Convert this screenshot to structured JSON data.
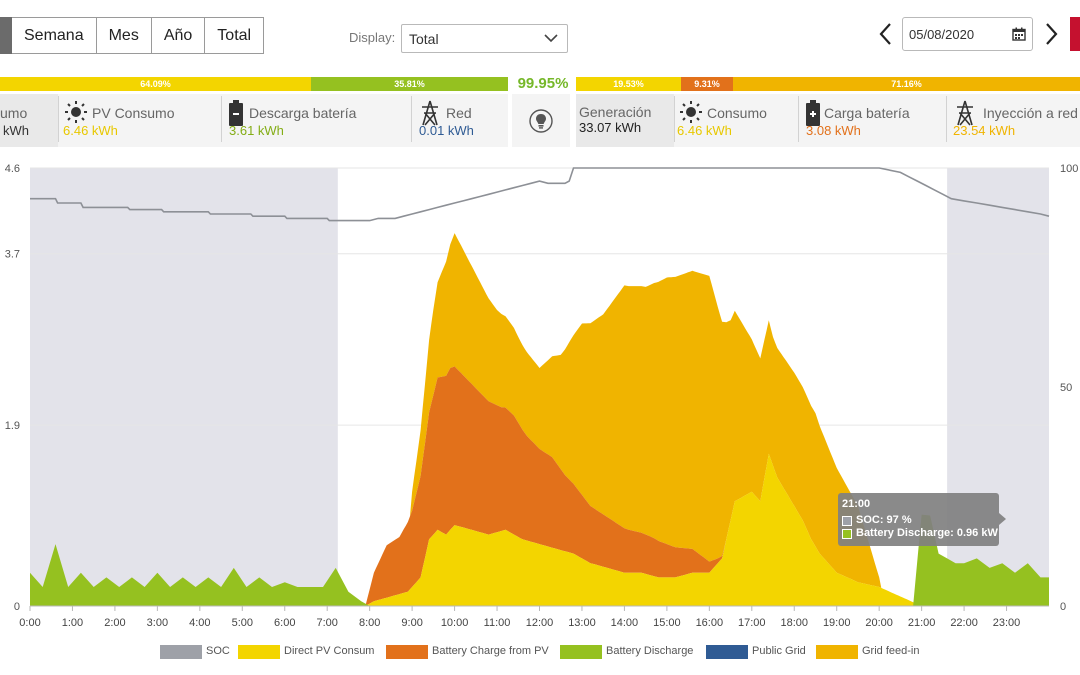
{
  "toolbar": {
    "tabs": [
      "Semana",
      "Mes",
      "Año",
      "Total"
    ],
    "display_label": "Display:",
    "display_value": "Total",
    "date_value": "05/08/2020"
  },
  "consumption_bars": {
    "pv_pct": "64.09%",
    "battery_pct": "35.81%"
  },
  "self_sufficiency": "99.95%",
  "generation_bars": {
    "self_pct": "19.53%",
    "battery_pct": "9.31%",
    "grid_pct": "71.16%"
  },
  "consumption_cards": {
    "total": {
      "title": "umo",
      "value": "kWh"
    },
    "pv": {
      "title": "PV Consumo",
      "value": "6.46 kWh"
    },
    "battery": {
      "title": "Descarga batería",
      "value": "3.61 kWh"
    },
    "grid": {
      "title": "Red",
      "value": "0.01 kWh"
    }
  },
  "generation_cards": {
    "total": {
      "title": "Generación",
      "value": "33.07 kWh"
    },
    "self": {
      "title": "Consumo",
      "value": "6.46 kWh"
    },
    "battery": {
      "title": "Carga batería",
      "value": "3.08 kWh"
    },
    "grid": {
      "title": "Inyección a red",
      "value": "23.54 kWh"
    }
  },
  "colors": {
    "soc": "#9ea1a8",
    "direct_pv": "#f3d500",
    "battery_charge": "#e2711b",
    "battery_discharge": "#95c120",
    "public_grid": "#2f5b94",
    "grid_feed_in": "#f0b400",
    "night_band": "#e3e3ea"
  },
  "tooltip": {
    "time": "21:00",
    "soc_line": "SOC: 97 %",
    "discharge_line": "Battery Discharge: 0.96 kW"
  },
  "chart_data": {
    "type": "area",
    "title": "",
    "x_unit": "hours",
    "x_ticks": [
      "0:00",
      "1:00",
      "2:00",
      "3:00",
      "4:00",
      "5:00",
      "6:00",
      "7:00",
      "8:00",
      "9:00",
      "10:00",
      "11:00",
      "12:00",
      "13:00",
      "14:00",
      "15:00",
      "16:00",
      "17:00",
      "18:00",
      "19:00",
      "20:00",
      "21:00",
      "22:00",
      "23:00"
    ],
    "y_left": {
      "ticks": [
        "0",
        "1.9",
        "3.7",
        "4.6"
      ],
      "range": [
        0,
        4.6
      ],
      "unit": "kW"
    },
    "y_right": {
      "ticks": [
        "0",
        "50",
        "100"
      ],
      "range": [
        0,
        100
      ],
      "unit": "%"
    },
    "night_bands": [
      [
        0,
        7.25
      ],
      [
        21.6,
        24
      ]
    ],
    "legend": [
      "SOC",
      "Direct PV Consum",
      "Battery Charge from PV",
      "Battery Discharge",
      "Public Grid",
      "Grid feed-in"
    ],
    "series": [
      {
        "name": "SOC",
        "axis": "right",
        "x": [
          0,
          0.6,
          0.65,
          1.2,
          1.25,
          2.3,
          2.35,
          3.1,
          3.15,
          4.2,
          4.25,
          5.2,
          5.25,
          6.0,
          6.05,
          7.0,
          7.05,
          8.0,
          8.2,
          8.6,
          8.8,
          9.0,
          9.2,
          9.4,
          9.6,
          9.8,
          10.0,
          10.2,
          10.4,
          10.6,
          10.8,
          11.0,
          11.2,
          11.4,
          11.6,
          11.8,
          12.0,
          12.2,
          12.4,
          12.6,
          12.7,
          12.8,
          13.0,
          14.0,
          15.0,
          16.0,
          17.0,
          18.0,
          19.0,
          20.0,
          20.5,
          20.7,
          20.9,
          21.1,
          21.3,
          21.5,
          21.7,
          22.0,
          22.3,
          22.6,
          22.9,
          23.2,
          23.5,
          23.8,
          24
        ],
        "values": [
          93,
          93,
          92,
          92,
          91,
          91,
          90.5,
          90.5,
          90,
          90,
          89.5,
          89.5,
          89,
          89,
          88.5,
          88.5,
          88,
          88,
          88.5,
          88.5,
          89,
          89.5,
          90,
          90.5,
          91,
          91.5,
          92,
          92.5,
          93,
          93.5,
          94,
          94.5,
          95,
          95.5,
          96,
          96.5,
          97,
          96.5,
          96.5,
          96.5,
          97,
          100,
          100,
          100,
          100,
          100,
          100,
          100,
          100,
          100,
          99,
          98,
          97,
          96,
          95,
          94,
          93,
          92.5,
          92,
          91.5,
          91,
          90.5,
          90,
          89.5,
          89
        ]
      },
      {
        "name": "Direct PV Consum",
        "axis": "left",
        "x": [
          0,
          7.9,
          8.1,
          8.5,
          8.9,
          9.2,
          9.4,
          9.6,
          9.8,
          10.0,
          10.4,
          10.8,
          11.2,
          11.6,
          12.0,
          12.4,
          12.8,
          13.2,
          13.6,
          14.0,
          14.4,
          14.8,
          15.2,
          15.6,
          16.0,
          16.3,
          16.6,
          16.8,
          17.0,
          17.2,
          17.4,
          17.6,
          17.8,
          18.0,
          18.2,
          18.4,
          18.6,
          18.8,
          19.0,
          19.5,
          20.0,
          20.5,
          21.0,
          24
        ],
        "values": [
          0,
          0,
          0.05,
          0.1,
          0.15,
          0.3,
          0.7,
          0.8,
          0.75,
          0.85,
          0.8,
          0.75,
          0.8,
          0.7,
          0.65,
          0.6,
          0.55,
          0.45,
          0.4,
          0.35,
          0.35,
          0.3,
          0.3,
          0.35,
          0.35,
          0.5,
          1.1,
          1.15,
          1.2,
          1.1,
          1.6,
          1.35,
          1.2,
          1.05,
          0.9,
          0.7,
          0.55,
          0.45,
          0.35,
          0.25,
          0.2,
          0.1,
          0,
          0
        ]
      },
      {
        "name": "Battery Charge from PV",
        "axis": "left",
        "x": [
          0,
          7.9,
          8.1,
          8.4,
          8.7,
          9.0,
          9.3,
          9.6,
          9.9,
          10.2,
          10.5,
          10.8,
          11.1,
          11.4,
          11.7,
          12.0,
          12.3,
          12.6,
          12.9,
          13.2,
          13.5,
          13.8,
          14.1,
          14.4,
          14.7,
          15.0,
          15.3,
          15.6,
          15.9,
          16.2,
          16.4,
          24
        ],
        "values": [
          0,
          0,
          0.3,
          0.55,
          0.6,
          0.8,
          1.2,
          1.6,
          1.7,
          1.6,
          1.5,
          1.4,
          1.3,
          1.25,
          1.1,
          1.0,
          0.95,
          0.8,
          0.7,
          0.6,
          0.55,
          0.5,
          0.45,
          0.42,
          0.4,
          0.35,
          0.3,
          0.25,
          0.15,
          0.05,
          0,
          0
        ]
      },
      {
        "name": "Battery Discharge",
        "axis": "left",
        "x": [
          0,
          0.3,
          0.6,
          0.9,
          1.2,
          1.5,
          1.8,
          2.1,
          2.4,
          2.7,
          3.0,
          3.3,
          3.6,
          3.9,
          4.2,
          4.5,
          4.8,
          5.1,
          5.4,
          5.7,
          6.0,
          6.3,
          6.6,
          6.9,
          7.2,
          7.5,
          7.8,
          8.0,
          20.8,
          21.0,
          21.2,
          21.4,
          21.6,
          21.8,
          22.0,
          22.3,
          22.6,
          22.9,
          23.2,
          23.5,
          23.8,
          24
        ],
        "values": [
          0.35,
          0.2,
          0.65,
          0.2,
          0.35,
          0.2,
          0.3,
          0.2,
          0.3,
          0.2,
          0.35,
          0.2,
          0.3,
          0.2,
          0.3,
          0.2,
          0.4,
          0.2,
          0.3,
          0.2,
          0.25,
          0.2,
          0.2,
          0.2,
          0.4,
          0.15,
          0.05,
          0,
          0,
          0.96,
          0.95,
          0.55,
          0.5,
          0.45,
          0.45,
          0.5,
          0.4,
          0.45,
          0.35,
          0.45,
          0.3,
          0.3
        ]
      },
      {
        "name": "Public Grid",
        "axis": "left",
        "x": [
          0,
          24
        ],
        "values": [
          0,
          0
        ]
      },
      {
        "name": "Grid feed-in",
        "axis": "left",
        "x": [
          9.0,
          9.5,
          10.0,
          10.5,
          11.0,
          11.5,
          12.0,
          12.5,
          13.0,
          13.5,
          14.0,
          14.5,
          15.0,
          15.5,
          16.0,
          16.5,
          17.0,
          17.5,
          18.0,
          18.5,
          19.0,
          19.5,
          20.0
        ],
        "values": [
          0.2,
          0.9,
          1.4,
          1.2,
          1.0,
          0.9,
          0.85,
          1.2,
          1.8,
          2.1,
          2.55,
          2.6,
          2.8,
          2.9,
          3.0,
          2.1,
          1.6,
          1.35,
          1.4,
          1.4,
          1.1,
          0.8,
          0.1
        ]
      }
    ]
  }
}
